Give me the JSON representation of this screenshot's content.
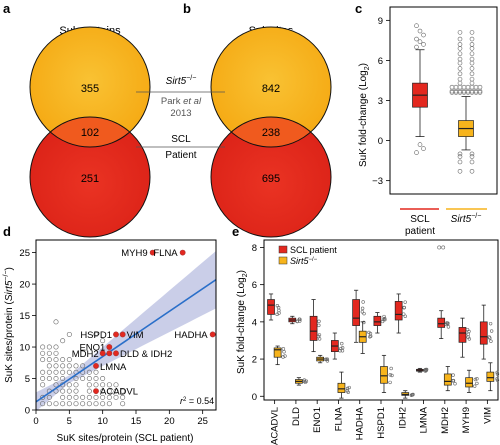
{
  "panels": {
    "a": {
      "letter": "a",
      "title": "Suk proteins",
      "counts": {
        "only_sirt5": "355",
        "overlap": "102",
        "only_scl": "251"
      }
    },
    "b": {
      "letter": "b",
      "title": "Suk sites",
      "counts": {
        "only_sirt5": "842",
        "overlap": "238",
        "only_scl": "695"
      }
    },
    "ab_labels": {
      "sirt5": "Sirt5",
      "sirt5_sup": "−/−",
      "source": "Park ",
      "source_etal": "et al",
      "year": "2013",
      "scl": "SCL",
      "patient": "Patient"
    },
    "c": {
      "letter": "c",
      "ylabel": "SuK fold-change (Log",
      "ylabel_sub": "2",
      "ylabel_end": ")",
      "yticks": [
        "9",
        "6",
        "3",
        "0",
        "−3"
      ],
      "cat1_line1": "SCL",
      "cat1_line2": "patient",
      "cat2": "Sirt5",
      "cat2_sup": "−/−"
    },
    "d": {
      "letter": "d",
      "xlabel": "SuK sites/protein (SCL patient)",
      "ylabel": "SuK sites/protein (",
      "ylabel_italic": "Sirt5",
      "ylabel_sup": "−/−",
      "ylabel_end": ")",
      "xticks": [
        "0",
        "5",
        "10",
        "15",
        "20",
        "25"
      ],
      "yticks": [
        "0",
        "5",
        "10",
        "15",
        "20",
        "25"
      ],
      "r2_label": "r",
      "r2_sup": "2",
      "r2_value": " = 0.54",
      "labels": [
        "MYH9",
        "FLNA",
        "HADHA",
        "HSPD1",
        "VIM",
        "ENO1",
        "MDH2",
        "DLD & IDH2",
        "LMNA",
        "ACADVL"
      ]
    },
    "e": {
      "letter": "e",
      "ylabel": "SuK fold-change (Log",
      "ylabel_sub": "2",
      "ylabel_end": ")",
      "yticks": [
        "8",
        "6",
        "4",
        "2",
        "0"
      ],
      "legend_scl": "SCL patient",
      "legend_sirt5": "Sirt5",
      "legend_sirt5_sup": "−/−",
      "categories": [
        "ACADVL",
        "DLD",
        "ENO1",
        "FLNA",
        "HADHA",
        "HSPD1",
        "IDH2",
        "LMNA",
        "MDH2",
        "MYH9",
        "VIM"
      ]
    }
  },
  "colors": {
    "orange": "#f7b41c",
    "red": "#e3281f",
    "overlap": "#f05a1e",
    "line": "#2a6fc9",
    "band": "#b8bde0"
  },
  "chart_data": [
    {
      "panel": "c",
      "type": "box",
      "categories": [
        "SCL patient",
        "Sirt5−/−"
      ],
      "ylim": [
        -3,
        9
      ],
      "boxes": [
        {
          "q1": 2.5,
          "median": 3.4,
          "q3": 4.3,
          "whisker_low": 0.3,
          "whisker_high": 6.8
        },
        {
          "q1": 0.3,
          "median": 0.9,
          "q3": 1.5,
          "whisker_low": -0.7,
          "whisker_high": 3.3
        }
      ]
    },
    {
      "panel": "d",
      "type": "scatter",
      "xlim": [
        0,
        27
      ],
      "ylim": [
        0,
        27
      ],
      "labeled_points": [
        {
          "label": "MYH9",
          "x": 17.5,
          "y": 25
        },
        {
          "label": "FLNA",
          "x": 22,
          "y": 25
        },
        {
          "label": "HADHA",
          "x": 26.5,
          "y": 12
        },
        {
          "label": "HSPD1",
          "x": 12,
          "y": 12
        },
        {
          "label": "VIM",
          "x": 13,
          "y": 12
        },
        {
          "label": "ENO1",
          "x": 11,
          "y": 10
        },
        {
          "label": "MDH2",
          "x": 10,
          "y": 9
        },
        {
          "label": "DLD",
          "x": 11,
          "y": 9
        },
        {
          "label": "IDH2",
          "x": 12,
          "y": 9
        },
        {
          "label": "LMNA",
          "x": 9,
          "y": 7
        },
        {
          "label": "ACADVL",
          "x": 9,
          "y": 3
        }
      ],
      "fit_line": {
        "x0": 0,
        "y0": 1.3,
        "x1": 27,
        "y1": 20.7
      },
      "r2": 0.54
    },
    {
      "panel": "e",
      "type": "box",
      "categories": [
        "ACADVL",
        "DLD",
        "ENO1",
        "FLNA",
        "HADHA",
        "HSPD1",
        "IDH2",
        "LMNA",
        "MDH2",
        "MYH9",
        "VIM"
      ],
      "ylim": [
        -0.2,
        8.4
      ],
      "series": [
        {
          "name": "SCL patient",
          "boxes": [
            {
              "q1": 4.4,
              "median": 4.9,
              "q3": 5.2,
              "whisker_low": 4.1,
              "whisker_high": 5.5
            },
            {
              "q1": 4.0,
              "median": 4.1,
              "q3": 4.2,
              "whisker_low": 3.9,
              "whisker_high": 4.3
            },
            {
              "q1": 3.0,
              "median": 3.5,
              "q3": 4.3,
              "whisker_low": 2.4,
              "whisker_high": 5.2
            },
            {
              "q1": 2.4,
              "median": 2.7,
              "q3": 3.0,
              "whisker_low": 2.0,
              "whisker_high": 3.4
            },
            {
              "q1": 3.8,
              "median": 4.2,
              "q3": 5.2,
              "whisker_low": 2.9,
              "whisker_high": 5.7
            },
            {
              "q1": 3.8,
              "median": 4.0,
              "q3": 4.3,
              "whisker_low": 3.4,
              "whisker_high": 4.5
            },
            {
              "q1": 4.1,
              "median": 4.4,
              "q3": 5.1,
              "whisker_low": 3.4,
              "whisker_high": 5.5
            },
            {
              "q1": 1.35,
              "median": 1.4,
              "q3": 1.45,
              "whisker_low": 1.3,
              "whisker_high": 1.5
            },
            {
              "q1": 3.7,
              "median": 3.9,
              "q3": 4.2,
              "whisker_low": 3.1,
              "whisker_high": 4.6
            },
            {
              "q1": 2.9,
              "median": 3.4,
              "q3": 3.7,
              "whisker_low": 2.1,
              "whisker_high": 4.2
            },
            {
              "q1": 2.8,
              "median": 3.2,
              "q3": 4.0,
              "whisker_low": 2.0,
              "whisker_high": 4.9
            }
          ]
        },
        {
          "name": "Sirt5−/−",
          "boxes": [
            {
              "q1": 2.1,
              "median": 2.5,
              "q3": 2.6,
              "whisker_low": 1.7,
              "whisker_high": 2.7
            },
            {
              "q1": 0.7,
              "median": 0.8,
              "q3": 0.9,
              "whisker_low": 0.6,
              "whisker_high": 1.0
            },
            {
              "q1": 1.9,
              "median": 2.0,
              "q3": 2.1,
              "whisker_low": 1.8,
              "whisker_high": 2.2
            },
            {
              "q1": 0.2,
              "median": 0.4,
              "q3": 0.7,
              "whisker_low": -0.1,
              "whisker_high": 1.3
            },
            {
              "q1": 2.9,
              "median": 3.2,
              "q3": 3.5,
              "whisker_low": 2.3,
              "whisker_high": 4.0
            },
            {
              "q1": 0.7,
              "median": 1.1,
              "q3": 1.6,
              "whisker_low": 0.2,
              "whisker_high": 2.2
            },
            {
              "q1": 0.05,
              "median": 0.1,
              "q3": 0.2,
              "whisker_low": -0.1,
              "whisker_high": 0.3
            },
            null,
            {
              "q1": 0.6,
              "median": 0.8,
              "q3": 1.2,
              "whisker_low": 0.3,
              "whisker_high": 1.6
            },
            {
              "q1": 0.5,
              "median": 0.7,
              "q3": 1.0,
              "whisker_low": 0.2,
              "whisker_high": 1.4
            },
            {
              "q1": 0.8,
              "median": 1.0,
              "q3": 1.3,
              "whisker_low": 0.3,
              "whisker_high": 1.8
            }
          ]
        }
      ]
    }
  ]
}
